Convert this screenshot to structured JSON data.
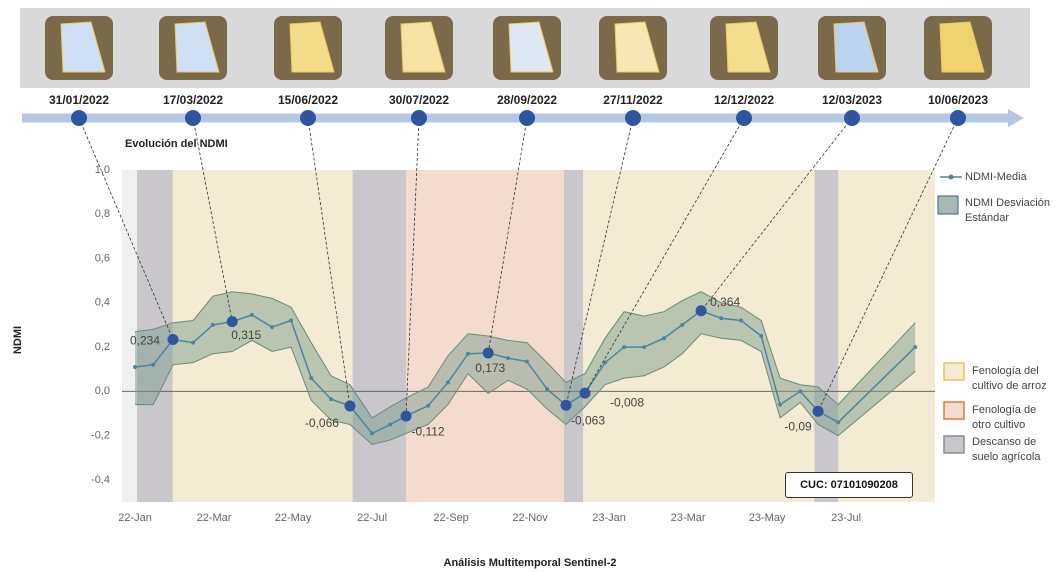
{
  "chart_data": {
    "type": "line",
    "title": "Evolución del NDMI",
    "x_label": "Análisis Multitemporal Sentinel-2",
    "y_label": "NDMI",
    "image_dates": [
      "31/01/2022",
      "17/03/2022",
      "15/06/2022",
      "30/07/2022",
      "28/09/2022",
      "27/11/2022",
      "12/12/2022",
      "12/03/2023",
      "10/06/2023"
    ],
    "x": [
      0,
      0.46,
      0.96,
      1.47,
      1.97,
      2.46,
      2.96,
      3.47,
      3.95,
      4.46,
      4.96,
      5.44,
      6.0,
      6.46,
      6.86,
      7.42,
      7.92,
      8.43,
      8.94,
      9.44,
      9.92,
      10.43,
      10.91,
      11.39,
      11.9,
      12.38,
      12.89,
      13.39,
      13.85,
      14.33,
      14.84,
      15.34,
      15.85,
      16.33,
      16.84,
      17.29,
      17.8,
      19.75
    ],
    "xlim": [
      -0.33,
      20.25
    ],
    "xticks": [
      {
        "value": 0,
        "label": "22-Jan"
      },
      {
        "value": 2,
        "label": "22-Mar"
      },
      {
        "value": 4,
        "label": "22-May"
      },
      {
        "value": 6,
        "label": "22-Jul"
      },
      {
        "value": 8,
        "label": "22-Sep"
      },
      {
        "value": 10,
        "label": "22-Nov"
      },
      {
        "value": 12,
        "label": "23-Jan"
      },
      {
        "value": 14,
        "label": "23-Mar"
      },
      {
        "value": 16,
        "label": "23-May"
      },
      {
        "value": 18,
        "label": "23-Jul"
      }
    ],
    "ylim": [
      -0.5,
      1.0
    ],
    "yticks": [
      {
        "value": 1.0,
        "label": "1,0"
      },
      {
        "value": 0.8,
        "label": "0,8"
      },
      {
        "value": 0.6,
        "label": "0,6"
      },
      {
        "value": 0.4,
        "label": "0,4"
      },
      {
        "value": 0.2,
        "label": "0,2"
      },
      {
        "value": 0.0,
        "label": "0,0"
      },
      {
        "value": -0.2,
        "label": "-0,2"
      },
      {
        "value": -0.4,
        "label": "-0,4"
      }
    ],
    "series": [
      {
        "name": "NDMI-Media",
        "color": "#4a86a0",
        "highlight_color": "#2e55a0",
        "values": [
          0.11,
          0.12,
          0.234,
          0.22,
          0.3,
          0.315,
          0.345,
          0.29,
          0.32,
          0.06,
          -0.035,
          -0.066,
          -0.19,
          -0.15,
          -0.112,
          -0.065,
          0.04,
          0.17,
          0.173,
          0.15,
          0.135,
          0.01,
          -0.063,
          -0.008,
          0.13,
          0.2,
          0.2,
          0.24,
          0.3,
          0.364,
          0.33,
          0.32,
          0.25,
          -0.06,
          0.0,
          -0.09,
          -0.14,
          0.2
        ],
        "value_labels": [
          null,
          null,
          "0,234",
          null,
          null,
          "0,315",
          null,
          null,
          null,
          null,
          null,
          "-0,066",
          null,
          null,
          "-0,112",
          null,
          null,
          null,
          "0,173",
          null,
          null,
          null,
          "-0,063",
          "-0,008",
          null,
          null,
          null,
          null,
          null,
          "0,364",
          null,
          null,
          null,
          null,
          null,
          "-0,09",
          null,
          null
        ]
      }
    ],
    "band": {
      "name": "NDMI Desviación Estándar",
      "color": "#7f9e90",
      "edge_color": "#6b8a7c",
      "upper": [
        0.27,
        0.28,
        0.31,
        0.32,
        0.43,
        0.45,
        0.44,
        0.42,
        0.38,
        0.22,
        0.07,
        0.03,
        -0.12,
        -0.07,
        -0.03,
        0.02,
        0.16,
        0.26,
        0.25,
        0.23,
        0.22,
        0.13,
        0.04,
        0.08,
        0.24,
        0.36,
        0.34,
        0.36,
        0.41,
        0.45,
        0.4,
        0.38,
        0.32,
        0.06,
        0.03,
        0.02,
        -0.06,
        0.31
      ],
      "lower": [
        -0.06,
        -0.06,
        0.12,
        0.13,
        0.17,
        0.18,
        0.23,
        0.18,
        0.2,
        -0.04,
        -0.13,
        -0.15,
        -0.24,
        -0.22,
        -0.19,
        -0.15,
        -0.06,
        0.08,
        -0.01,
        0.05,
        0.01,
        -0.08,
        -0.15,
        -0.07,
        0.03,
        0.06,
        0.07,
        0.11,
        0.17,
        0.26,
        0.24,
        0.23,
        0.18,
        -0.12,
        -0.05,
        -0.15,
        -0.2,
        0.09
      ]
    },
    "regions": [
      {
        "name": "Fenología del cultivo de arroz",
        "color": "#f3ebd3",
        "border": "#e6c35c",
        "spans": [
          [
            0.95,
            5.51
          ],
          [
            11.34,
            20.25
          ]
        ]
      },
      {
        "name": "Fenología de otro cultivo",
        "color": "#f3dccf",
        "border": "#e07b39",
        "spans": [
          [
            6.86,
            10.86
          ]
        ]
      },
      {
        "name": "Descanso de suelo agrícola",
        "color": "#c9c6cc",
        "border": "#8e8c92",
        "spans": [
          [
            0.05,
            0.95
          ],
          [
            5.51,
            6.86
          ],
          [
            10.86,
            11.34
          ],
          [
            17.2,
            17.8
          ]
        ]
      }
    ],
    "annotation": "CUC: 07101090208"
  }
}
